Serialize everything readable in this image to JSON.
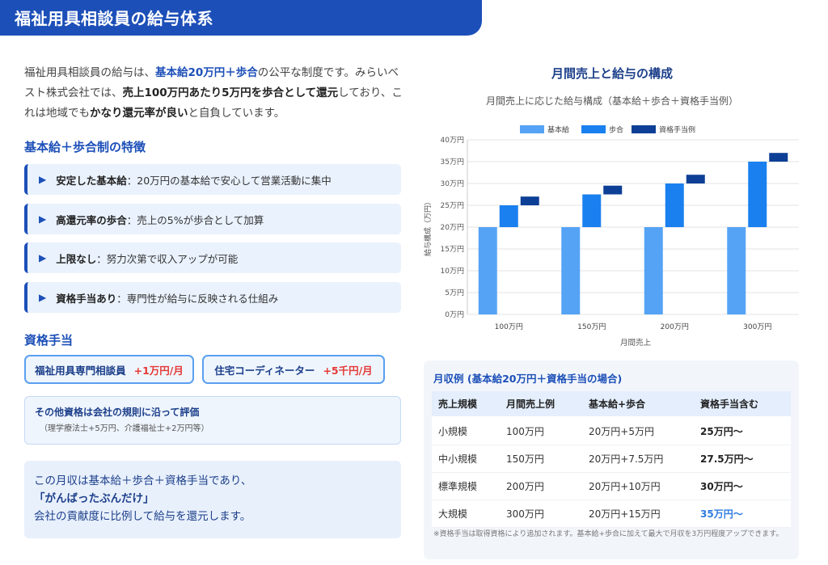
{
  "header": {
    "title": "福祉用具相談員の給与体系"
  },
  "intro": {
    "t1": "福祉用具相談員の給与は、",
    "b1": "基本給20万円＋歩合",
    "t2": "の公平な制度です。みらいベスト株式会社では、",
    "b2": "売上100万円あたり5万円を歩合として還元",
    "t3": "しており、これは地域でも",
    "b3": "かなり還元率が良い",
    "t4": "と自負しています。"
  },
  "features": {
    "title": "基本給＋歩合制の特徴",
    "items": [
      {
        "key": "安定した基本給",
        "text": "：20万円の基本給で安心して営業活動に集中"
      },
      {
        "key": "高還元率の歩合",
        "text": "：売上の5%が歩合として加算"
      },
      {
        "key": "上限なし",
        "text": "：努力次第で収入アップが可能"
      },
      {
        "key": "資格手当あり",
        "text": "：専門性が給与に反映される仕組み"
      }
    ]
  },
  "qualification": {
    "title": "資格手当",
    "items": [
      {
        "name": "福祉用具専門相談員",
        "amount": "+1万円/月"
      },
      {
        "name": "住宅コーディネーター",
        "amount": "+5千円/月"
      }
    ],
    "other_title": "その他資格は会社の規則に沿って評価",
    "other_sub": "（理学療法士+5万円、介護福祉士+2万円等）"
  },
  "summary": {
    "line1": "この月収は基本給＋歩合＋資格手当であり、",
    "line2": "「がんばったぶんだけ」",
    "line3": "会社の貢献度に比例して給与を還元します。"
  },
  "chart_section": {
    "title": "月間売上と給与の構成",
    "subtitle": "月間売上に応じた給与構成（基本給＋歩合＋資格手当例）"
  },
  "colors": {
    "base": "#55a3f5",
    "commission": "#1a80ef",
    "allowance": "#0d3f96",
    "accent": "#1c4fb8"
  },
  "chart_data": {
    "type": "bar",
    "categories": [
      "100万円",
      "150万円",
      "200万円",
      "300万円"
    ],
    "series": [
      {
        "name": "基本給",
        "values": [
          20,
          20,
          20,
          20
        ]
      },
      {
        "name": "歩合",
        "values": [
          [
            20,
            25
          ],
          [
            20,
            27.5
          ],
          [
            20,
            30
          ],
          [
            20,
            35
          ]
        ]
      },
      {
        "name": "資格手当例",
        "values": [
          [
            25,
            27
          ],
          [
            27.5,
            29.5
          ],
          [
            30,
            32
          ],
          [
            35,
            37
          ]
        ]
      }
    ],
    "xlabel": "月間売上",
    "ylabel": "給与構成（万円）",
    "ylim": [
      0,
      40
    ],
    "yticks": [
      "0万円",
      "5万円",
      "10万円",
      "15万円",
      "20万円",
      "25万円",
      "30万円",
      "35万円",
      "40万円"
    ],
    "legend": "top",
    "grid": true
  },
  "income_table": {
    "title": "月収例 (基本給20万円＋資格手当の場合)",
    "headers": [
      "売上規模",
      "月間売上例",
      "基本給+歩合",
      "資格手当含む"
    ],
    "rows": [
      [
        "小規模",
        "100万円",
        "20万円+5万円",
        "25万円〜"
      ],
      [
        "中小規模",
        "150万円",
        "20万円+7.5万円",
        "27.5万円〜"
      ],
      [
        "標準規模",
        "200万円",
        "20万円+10万円",
        "30万円〜"
      ],
      [
        "大規模",
        "300万円",
        "20万円+15万円",
        "35万円〜"
      ]
    ],
    "note": "※資格手当は取得資格により追加されます。基本給+歩合に加えて最大で月収を3万円程度アップできます。"
  }
}
